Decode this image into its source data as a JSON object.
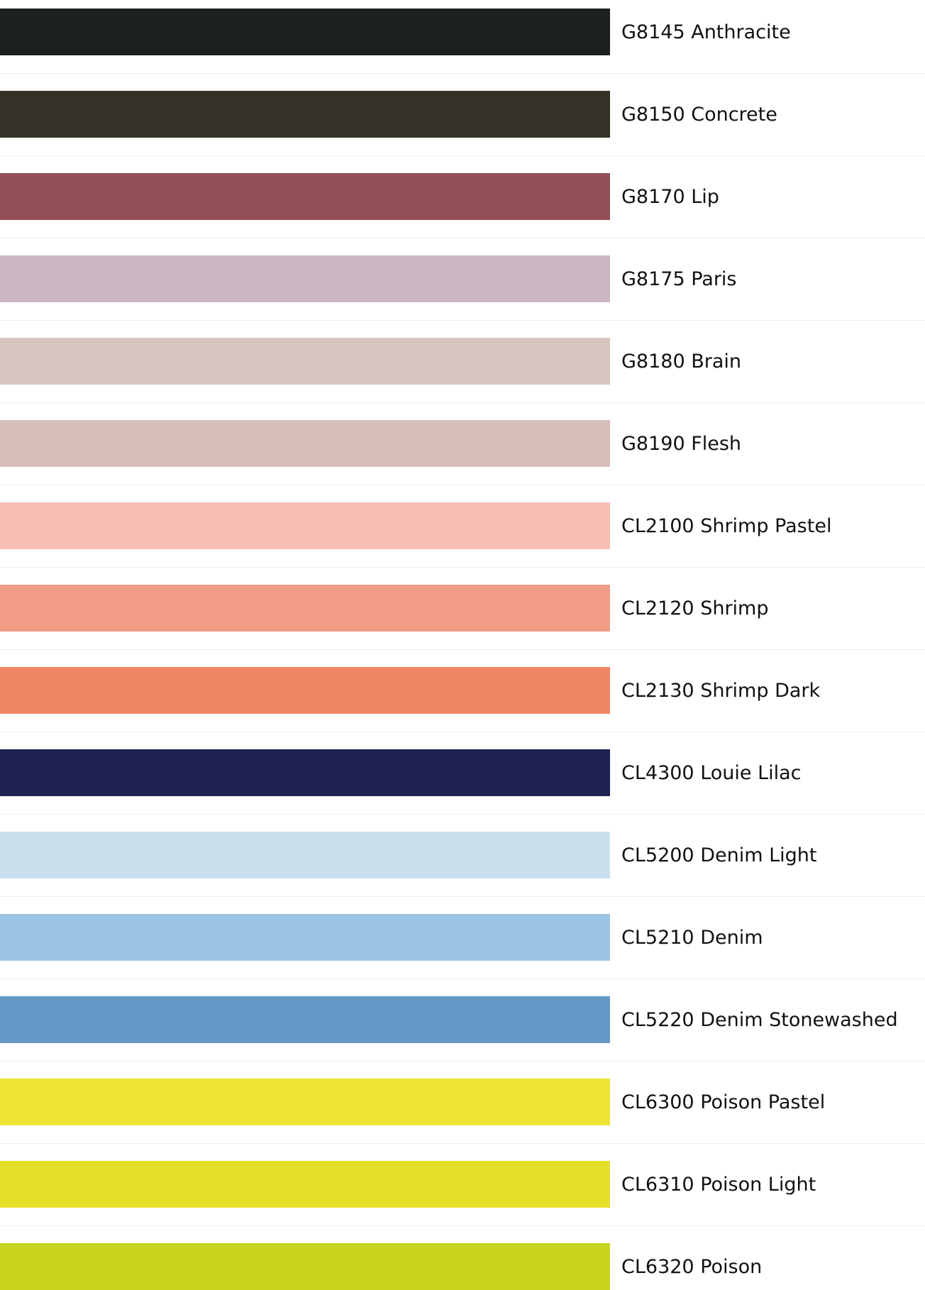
{
  "colors": [
    {
      "label": "G8145 Anthracite",
      "hex": "#1b2120"
    },
    {
      "label": "G8150 Concrete",
      "hex": "#363126"
    },
    {
      "label": "G8170 Lip",
      "hex": "#924f56"
    },
    {
      "label": "G8175 Paris",
      "hex": "#cbb5c2"
    },
    {
      "label": "G8180 Brain",
      "hex": "#d5c5be"
    },
    {
      "label": "G8190 Flesh",
      "hex": "#d6bfb8"
    },
    {
      "label": "CL2100 Shrimp Pastel",
      "hex": "#f7bfb4"
    },
    {
      "label": "CL2120 Shrimp",
      "hex": "#f19c86"
    },
    {
      "label": "CL2130 Shrimp Dark",
      "hex": "#f08665"
    },
    {
      "label": "CL4300 Louie Lilac",
      "hex": "#1e2354"
    },
    {
      "label": "CL5200 Denim Light",
      "hex": "#c9e0ef"
    },
    {
      "label": "CL5210 Denim",
      "hex": "#9bc5e3"
    },
    {
      "label": "CL5220 Denim Stonewashed",
      "hex": "#6699c7"
    },
    {
      "label": "CL6300 Poison Pastel",
      "hex": "#ede433"
    },
    {
      "label": "CL6310 Poison Light",
      "hex": "#e4e02a"
    },
    {
      "label": "CL6320 Poison",
      "hex": "#c9d41f"
    }
  ]
}
